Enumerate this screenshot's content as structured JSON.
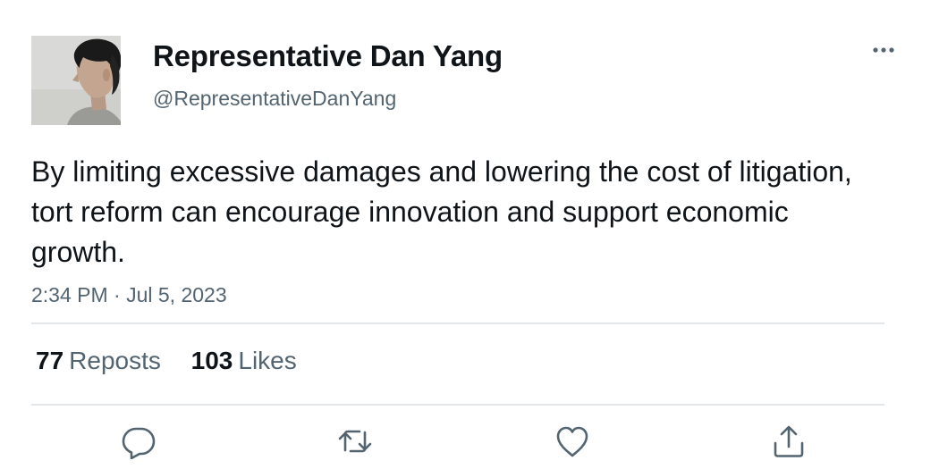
{
  "author": {
    "display_name": "Representative Dan Yang",
    "handle": "@RepresentativeDanYang",
    "avatar_icon": "profile-photo"
  },
  "tweet": {
    "text": "By limiting excessive damages and lowering the cost of litigation, tort reform can encourage innovation and support economic growth.",
    "timestamp": "2:34 PM · Jul 5, 2023"
  },
  "stats": {
    "reposts_count": "77",
    "reposts_label": "Reposts",
    "likes_count": "103",
    "likes_label": "Likes"
  },
  "actions": {
    "reply_icon": "reply-icon",
    "repost_icon": "repost-icon",
    "like_icon": "heart-icon",
    "share_icon": "share-icon"
  },
  "menu": {
    "more_icon": "more-icon"
  },
  "colors": {
    "text_primary": "#0f1419",
    "text_secondary": "#536471",
    "divider": "#e4e7ea",
    "icon": "#536471"
  }
}
